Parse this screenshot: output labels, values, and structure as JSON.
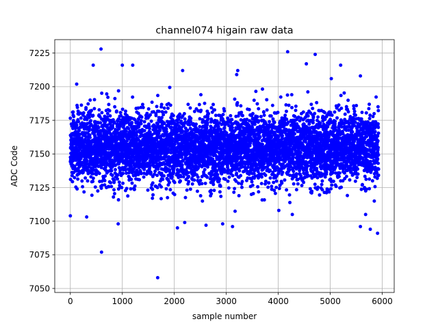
{
  "chart_data": {
    "type": "scatter",
    "title": "channel074 higain raw data",
    "xlabel": "sample number",
    "ylabel": "ADC Code",
    "xlim": [
      -300,
      6230
    ],
    "ylim": [
      7047,
      7235
    ],
    "xticks": [
      0,
      1000,
      2000,
      3000,
      4000,
      5000,
      6000
    ],
    "xtick_labels": [
      "0",
      "1000",
      "2000",
      "3000",
      "4000",
      "5000",
      "6000"
    ],
    "yticks": [
      7050,
      7075,
      7100,
      7125,
      7150,
      7175,
      7200,
      7225
    ],
    "ytick_labels": [
      "7050",
      "7075",
      "7100",
      "7125",
      "7150",
      "7175",
      "7200",
      "7225"
    ],
    "grid": true,
    "legend": "none",
    "marker_color": "#0000ff",
    "series": [
      {
        "samples": 5930,
        "typical_range": [
          7130,
          7175
        ],
        "center": 7155,
        "notable_points": [
          {
            "x": 590,
            "y": 7228
          },
          {
            "x": 600,
            "y": 7077
          },
          {
            "x": 1680,
            "y": 7058
          },
          {
            "x": 4180,
            "y": 7226
          },
          {
            "x": 4710,
            "y": 7224
          },
          {
            "x": 440,
            "y": 7216
          },
          {
            "x": 1000,
            "y": 7216
          },
          {
            "x": 1200,
            "y": 7216
          },
          {
            "x": 4540,
            "y": 7217
          },
          {
            "x": 5200,
            "y": 7216
          },
          {
            "x": 2160,
            "y": 7212
          },
          {
            "x": 3220,
            "y": 7212
          },
          {
            "x": 3200,
            "y": 7209
          },
          {
            "x": 5020,
            "y": 7206
          },
          {
            "x": 5580,
            "y": 7208
          },
          {
            "x": 0,
            "y": 7104
          },
          {
            "x": 920,
            "y": 7098
          },
          {
            "x": 2060,
            "y": 7095
          },
          {
            "x": 2200,
            "y": 7099
          },
          {
            "x": 2610,
            "y": 7097
          },
          {
            "x": 2930,
            "y": 7098
          },
          {
            "x": 3120,
            "y": 7096
          },
          {
            "x": 4010,
            "y": 7108
          },
          {
            "x": 4270,
            "y": 7105
          },
          {
            "x": 5580,
            "y": 7096
          },
          {
            "x": 5770,
            "y": 7094
          },
          {
            "x": 5910,
            "y": 7091
          },
          {
            "x": 5680,
            "y": 7105
          }
        ]
      }
    ]
  }
}
